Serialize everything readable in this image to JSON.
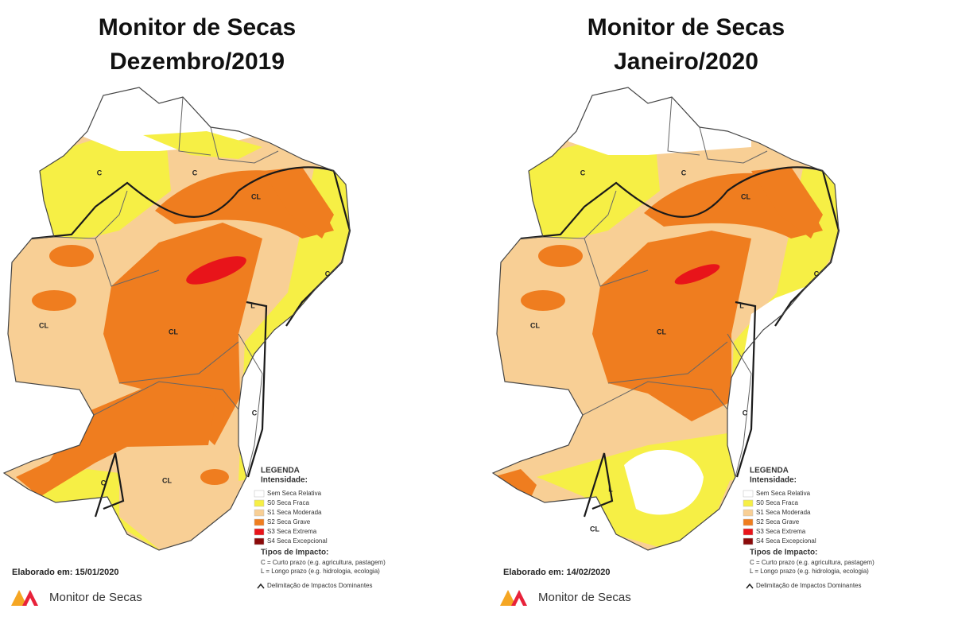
{
  "panels": [
    {
      "title": [
        "Monitor de Secas",
        "Dezembro/2019"
      ],
      "region_labels": [
        "C",
        "C",
        "CL",
        "C",
        "L",
        "CL",
        "CL",
        "C",
        "C",
        "CL"
      ],
      "legend": {
        "heading": "LEGENDA",
        "intensity_heading": "Intensidade:",
        "items": [
          "Sem Seca Relativa",
          "S0 Seca Fraca",
          "S1 Seca Moderada",
          "S2 Seca Grave",
          "S3 Seca Extrema",
          "S4 Seca Excepcional"
        ],
        "impact_heading": "Tipos de Impacto:",
        "impacts": [
          "C = Curto prazo (e.g. agricultura, pastagem)",
          "L = Longo prazo (e.g. hidrologia, ecologia)"
        ],
        "boundary": "Delimitação de Impactos Dominantes"
      },
      "footer": "Elaborado em: 15/01/2020",
      "logo": "Monitor de Secas"
    },
    {
      "title": [
        "Monitor de Secas",
        "Janeiro/2020"
      ],
      "region_labels": [
        "C",
        "C",
        "CL",
        "C",
        "L",
        "CL",
        "CL",
        "C",
        "L",
        "CL"
      ],
      "legend": {
        "heading": "LEGENDA",
        "intensity_heading": "Intensidade:",
        "items": [
          "Sem Seca Relativa",
          "S0 Seca Fraca",
          "S1 Seca Moderada",
          "S2 Seca Grave",
          "S3 Seca Extrema",
          "S4 Seca Excepcional"
        ],
        "impact_heading": "Tipos de Impacto:",
        "impacts": [
          "C = Curto prazo (e.g. agricultura, pastagem)",
          "L = Longo prazo (e.g. hidrologia, ecologia)"
        ],
        "boundary": "Delimitação de Impactos Dominantes"
      },
      "footer": "Elaborado em: 14/02/2020",
      "logo": "Monitor de Secas"
    }
  ]
}
